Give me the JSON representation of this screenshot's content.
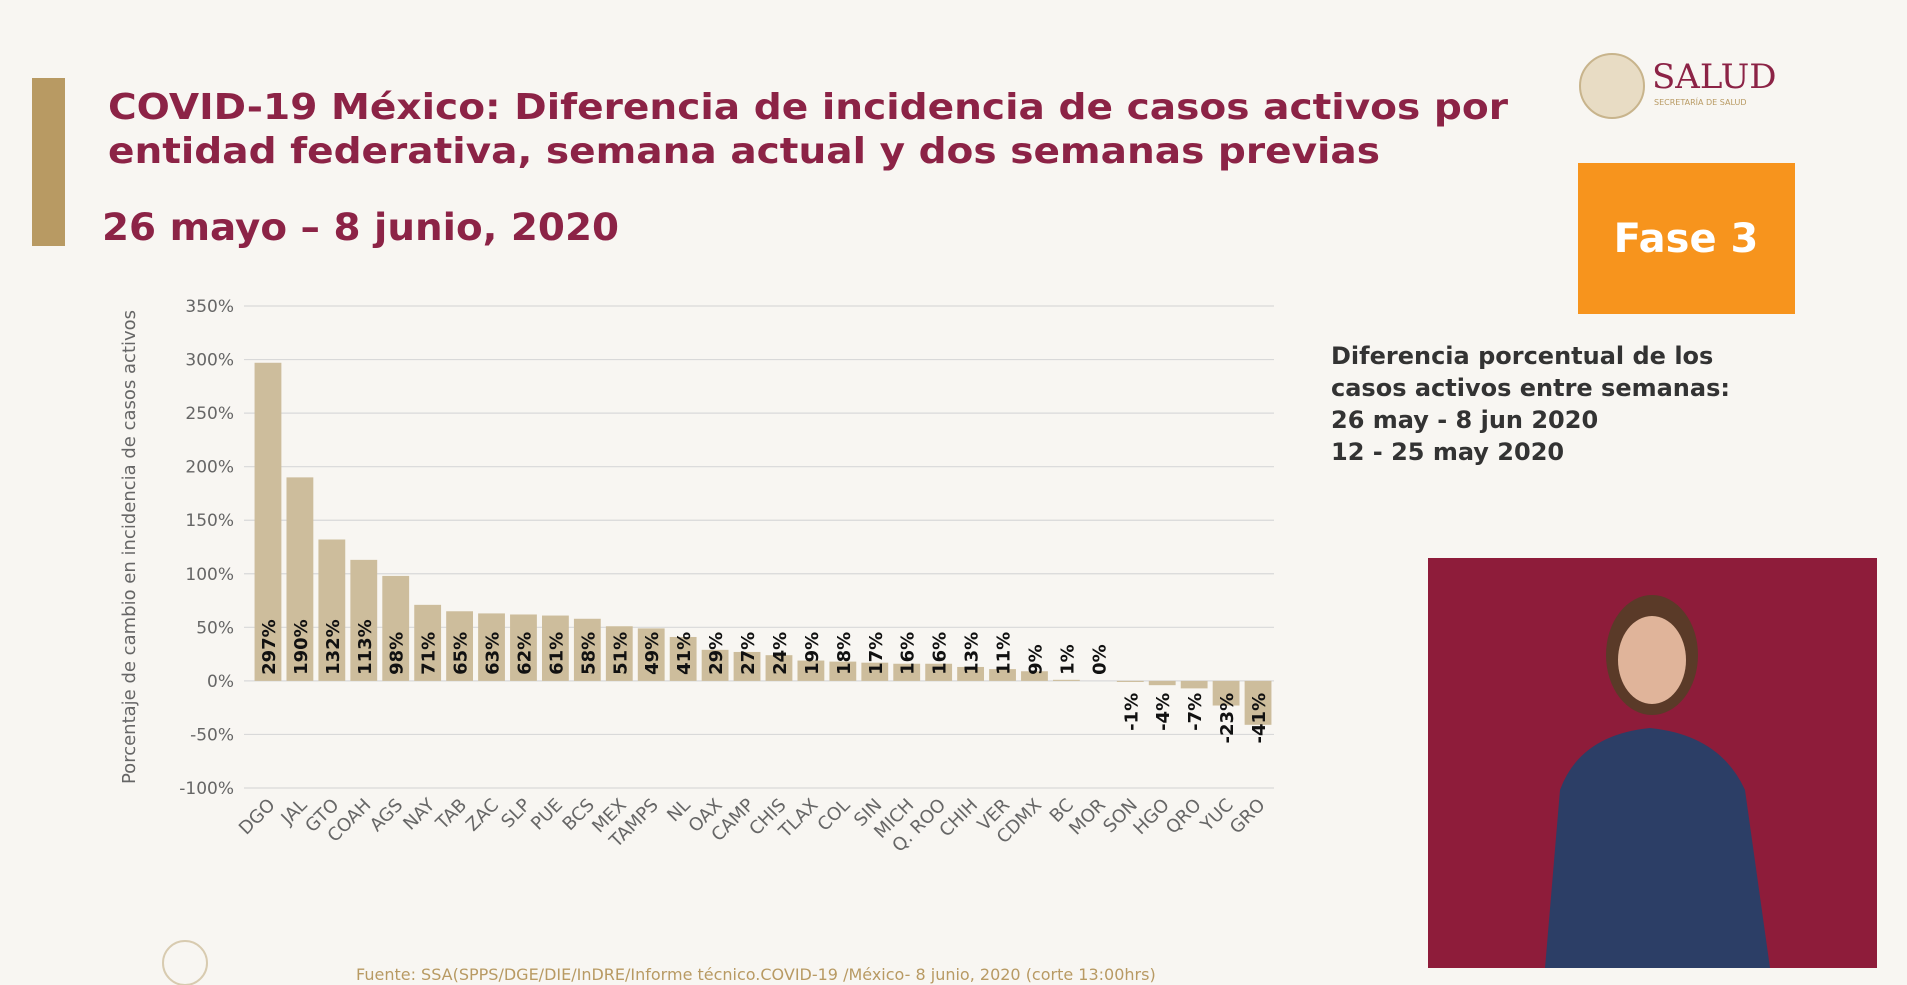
{
  "chart_data": {
    "type": "bar",
    "title": "COVID-19 México: Diferencia de incidencia de casos activos por entidad federativa, semana actual y dos semanas previas",
    "subtitle": "26 mayo – 8 junio, 2020",
    "ylabel": "Porcentaje de cambio en incidencia de casos activos",
    "categories": [
      "DGO",
      "JAL",
      "GTO",
      "COAH",
      "AGS",
      "NAY",
      "TAB",
      "ZAC",
      "SLP",
      "PUE",
      "BCS",
      "MEX",
      "TAMPS",
      "NL",
      "OAX",
      "CAMP",
      "CHIS",
      "TLAX",
      "COL",
      "SIN",
      "MICH",
      "Q. ROO",
      "CHIH",
      "VER",
      "CDMX",
      "BC",
      "MOR",
      "SON",
      "HGO",
      "QRO",
      "YUC",
      "GRO"
    ],
    "values": [
      297,
      190,
      132,
      113,
      98,
      71,
      65,
      63,
      62,
      61,
      58,
      51,
      49,
      41,
      29,
      27,
      24,
      19,
      18,
      17,
      16,
      16,
      13,
      11,
      9,
      1,
      0,
      -1,
      -4,
      -7,
      -23,
      -41
    ],
    "value_labels": [
      "297%",
      "190%",
      "132%",
      "113%",
      "98%",
      "71%",
      "65%",
      "63%",
      "62%",
      "61%",
      "58%",
      "51%",
      "49%",
      "41%",
      "29%",
      "27%",
      "24%",
      "19%",
      "18%",
      "17%",
      "16%",
      "16%",
      "13%",
      "11%",
      "9%",
      "1%",
      "0%",
      "-1%",
      "-4%",
      "-7%",
      "-23%",
      "-41%"
    ],
    "color": "#cdbd9c",
    "ylim": [
      -100,
      350
    ],
    "yticks": [
      {
        "value": -100,
        "label": "-100%"
      },
      {
        "value": -50,
        "label": "-50%"
      },
      {
        "value": 0,
        "label": "0%"
      },
      {
        "value": 50,
        "label": "50%"
      },
      {
        "value": 100,
        "label": "100%"
      },
      {
        "value": 150,
        "label": "150%"
      },
      {
        "value": 200,
        "label": "200%"
      },
      {
        "value": 250,
        "label": "250%"
      },
      {
        "value": 300,
        "label": "300%"
      },
      {
        "value": 350,
        "label": "350%"
      }
    ],
    "grid": true
  },
  "header": {
    "logo": "SALUD",
    "logo_sub": "SECRETARÍA DE SALUD",
    "phase": "Fase 3"
  },
  "note": [
    "Diferencia porcentual de los",
    "casos activos entre semanas:",
    "26 may - 8 jun 2020",
    "12 - 25 may 2020"
  ],
  "source": "Fuente: SSA(SPPS/DGE/DIE/InDRE/Informe técnico.COVID-19 /México- 8 junio, 2020 (corte 13:00hrs)"
}
